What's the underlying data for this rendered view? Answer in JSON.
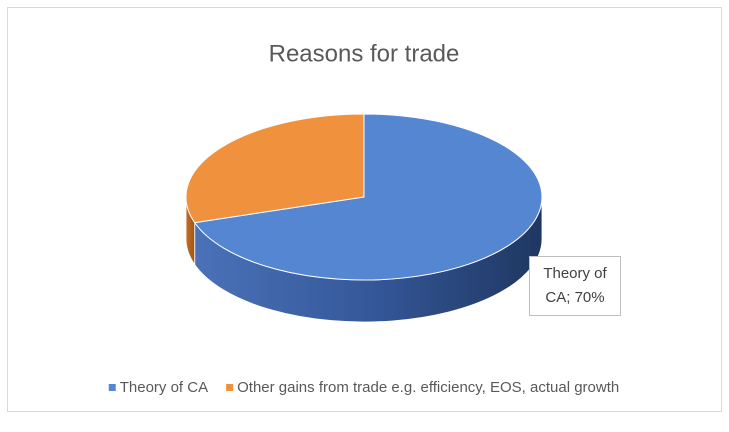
{
  "chart_data": {
    "type": "pie",
    "title": "Reasons for trade",
    "categories": [
      "Theory of CA",
      "Other gains from trade e.g. efficiency, EOS, actual growth"
    ],
    "values": [
      70,
      30
    ],
    "value_labels": [
      "Theory of CA; 70%",
      null
    ],
    "colors": [
      "#5586d2",
      "#f0913e"
    ],
    "legend": "bottom"
  }
}
